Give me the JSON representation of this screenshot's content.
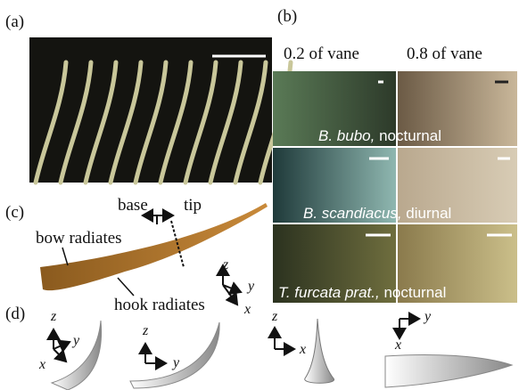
{
  "panels": {
    "a": "(a)",
    "b": "(b)",
    "c": "(c)",
    "d": "(d)"
  },
  "columns": [
    "0.2 of vane",
    "0.8 of vane"
  ],
  "species": [
    {
      "name": "B. bubo,",
      "time": "nocturnal"
    },
    {
      "name": "B. scandiacus,",
      "time": "diurnal"
    },
    {
      "name": "T. furcata prat.,",
      "time": "nocturnal"
    }
  ],
  "annotations": {
    "base": "base",
    "tip": "tip",
    "bow": "bow radiates",
    "hook": "hook radiates"
  },
  "axes": {
    "c": [
      "z",
      "y",
      "x"
    ],
    "d1": [
      "z",
      "y",
      "x"
    ],
    "d2": [
      "z",
      "y"
    ],
    "d3": [
      "z",
      "x"
    ],
    "d4": [
      "y",
      "x"
    ]
  }
}
